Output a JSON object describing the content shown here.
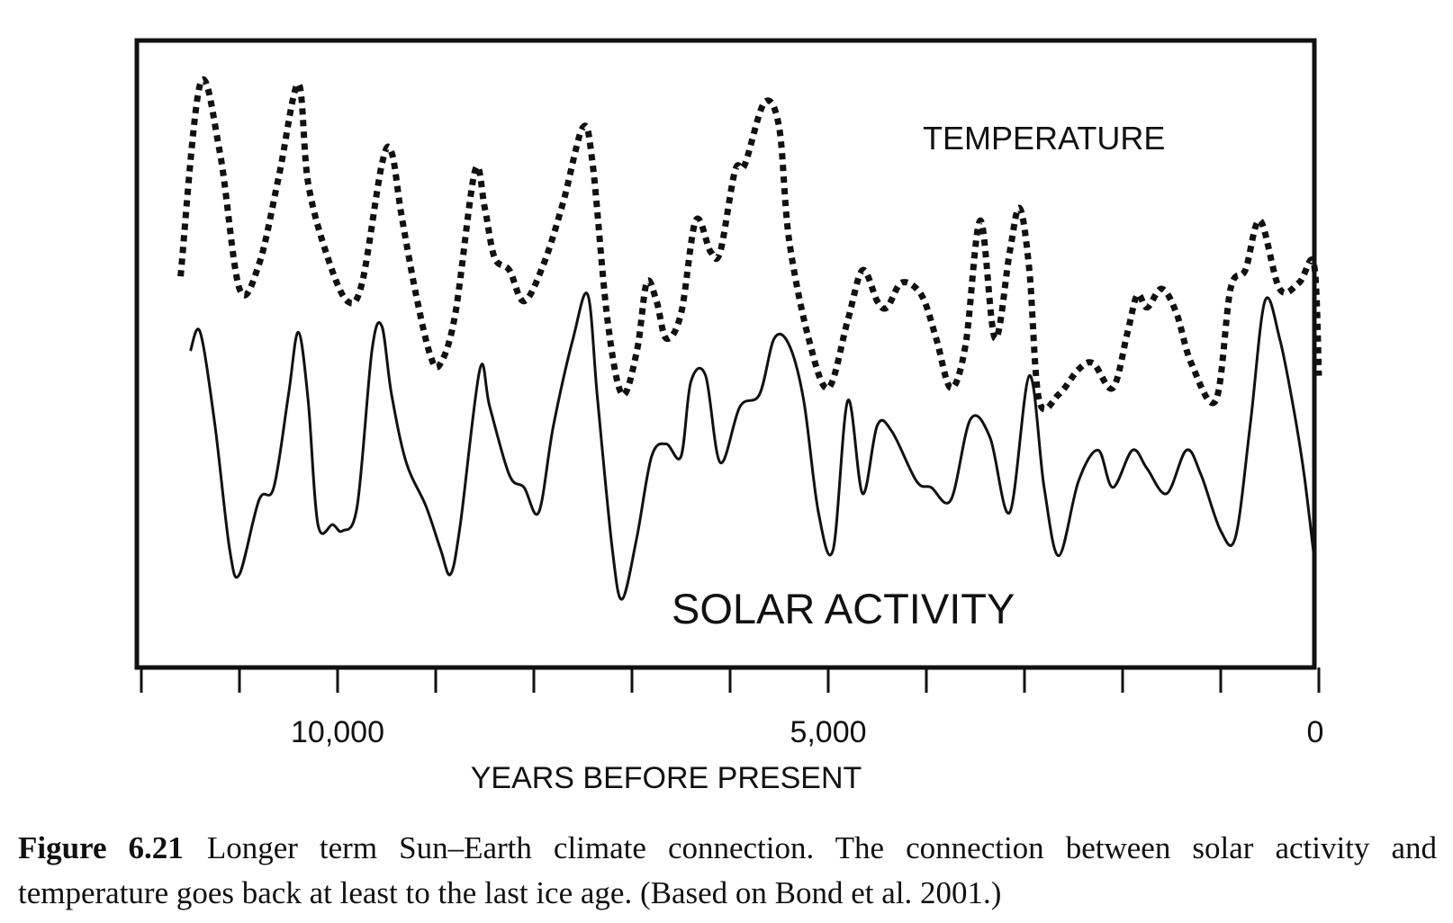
{
  "chart_data": {
    "type": "line",
    "xlabel": "YEARS BEFORE PRESENT",
    "ylabel": "",
    "xlim": [
      12000,
      0
    ],
    "x_ticks": [
      12000,
      11000,
      10000,
      9000,
      8000,
      7000,
      6000,
      5000,
      4000,
      3000,
      2000,
      1000,
      0
    ],
    "x_tick_labels": [
      {
        "value": 10000,
        "label": "10,000"
      },
      {
        "value": 5000,
        "label": "5,000"
      },
      {
        "value": 0,
        "label": "0"
      }
    ],
    "y_scale": "relative (unlabeled)",
    "ylim": [
      0,
      100
    ],
    "grid": false,
    "legend": "none (series labeled directly on plot)",
    "series": [
      {
        "name": "TEMPERATURE",
        "style": "dotted",
        "color": "#111111",
        "points": [
          [
            11600,
            62
          ],
          [
            11400,
            93
          ],
          [
            11200,
            82
          ],
          [
            11000,
            60
          ],
          [
            10800,
            64
          ],
          [
            10600,
            78
          ],
          [
            10400,
            93
          ],
          [
            10300,
            77
          ],
          [
            10100,
            65
          ],
          [
            9900,
            58
          ],
          [
            9750,
            61
          ],
          [
            9550,
            80
          ],
          [
            9450,
            82
          ],
          [
            9350,
            72
          ],
          [
            9200,
            59
          ],
          [
            9050,
            49
          ],
          [
            8950,
            48
          ],
          [
            8800,
            56
          ],
          [
            8600,
            79
          ],
          [
            8500,
            73
          ],
          [
            8400,
            65
          ],
          [
            8250,
            63
          ],
          [
            8100,
            58
          ],
          [
            7900,
            64
          ],
          [
            7700,
            74
          ],
          [
            7500,
            86
          ],
          [
            7400,
            80
          ],
          [
            7250,
            55
          ],
          [
            7100,
            43
          ],
          [
            6950,
            50
          ],
          [
            6850,
            61
          ],
          [
            6750,
            58
          ],
          [
            6650,
            52
          ],
          [
            6500,
            56
          ],
          [
            6350,
            71
          ],
          [
            6200,
            66
          ],
          [
            6100,
            66
          ],
          [
            5950,
            79
          ],
          [
            5850,
            80
          ],
          [
            5650,
            90
          ],
          [
            5500,
            86
          ],
          [
            5400,
            68
          ],
          [
            5200,
            52
          ],
          [
            5000,
            44
          ],
          [
            4800,
            55
          ],
          [
            4650,
            63
          ],
          [
            4500,
            58
          ],
          [
            4400,
            57
          ],
          [
            4250,
            61
          ],
          [
            4050,
            59
          ],
          [
            3900,
            52
          ],
          [
            3750,
            44
          ],
          [
            3600,
            51
          ],
          [
            3450,
            71
          ],
          [
            3300,
            52
          ],
          [
            3150,
            66
          ],
          [
            3050,
            73
          ],
          [
            2950,
            63
          ],
          [
            2850,
            42
          ],
          [
            2650,
            43
          ],
          [
            2450,
            47
          ],
          [
            2300,
            48
          ],
          [
            2100,
            44
          ],
          [
            1950,
            53
          ],
          [
            1850,
            59
          ],
          [
            1750,
            57
          ],
          [
            1600,
            60
          ],
          [
            1450,
            56
          ],
          [
            1300,
            48
          ],
          [
            1050,
            42
          ],
          [
            900,
            60
          ],
          [
            750,
            63
          ],
          [
            600,
            71
          ],
          [
            400,
            60
          ],
          [
            200,
            61
          ],
          [
            50,
            64
          ],
          [
            0,
            46
          ]
        ]
      },
      {
        "name": "SOLAR ACTIVITY",
        "style": "solid",
        "color": "#111111",
        "points": [
          [
            11500,
            50
          ],
          [
            11400,
            53
          ],
          [
            11250,
            38
          ],
          [
            11100,
            18
          ],
          [
            11000,
            14
          ],
          [
            10800,
            26
          ],
          [
            10650,
            28
          ],
          [
            10500,
            43
          ],
          [
            10400,
            53
          ],
          [
            10300,
            42
          ],
          [
            10200,
            22
          ],
          [
            10050,
            22
          ],
          [
            9950,
            21
          ],
          [
            9800,
            25
          ],
          [
            9650,
            50
          ],
          [
            9550,
            54
          ],
          [
            9450,
            43
          ],
          [
            9300,
            32
          ],
          [
            9100,
            25
          ],
          [
            8950,
            18
          ],
          [
            8850,
            14
          ],
          [
            8750,
            22
          ],
          [
            8550,
            47
          ],
          [
            8450,
            41
          ],
          [
            8250,
            30
          ],
          [
            8100,
            28
          ],
          [
            7950,
            24
          ],
          [
            7800,
            38
          ],
          [
            7600,
            52
          ],
          [
            7450,
            59
          ],
          [
            7350,
            42
          ],
          [
            7200,
            18
          ],
          [
            7100,
            10
          ],
          [
            6950,
            20
          ],
          [
            6800,
            33
          ],
          [
            6650,
            35
          ],
          [
            6500,
            33
          ],
          [
            6400,
            45
          ],
          [
            6250,
            46
          ],
          [
            6100,
            32
          ],
          [
            5900,
            41
          ],
          [
            5700,
            43
          ],
          [
            5550,
            52
          ],
          [
            5400,
            51
          ],
          [
            5250,
            42
          ],
          [
            5100,
            24
          ],
          [
            4950,
            18
          ],
          [
            4800,
            42
          ],
          [
            4650,
            27
          ],
          [
            4500,
            38
          ],
          [
            4350,
            37
          ],
          [
            4100,
            29
          ],
          [
            3950,
            28
          ],
          [
            3750,
            26
          ],
          [
            3550,
            39
          ],
          [
            3350,
            36
          ],
          [
            3150,
            24
          ],
          [
            2950,
            46
          ],
          [
            2800,
            28
          ],
          [
            2650,
            17
          ],
          [
            2450,
            29
          ],
          [
            2250,
            34
          ],
          [
            2100,
            28
          ],
          [
            1900,
            34
          ],
          [
            1750,
            31
          ],
          [
            1550,
            27
          ],
          [
            1350,
            34
          ],
          [
            1200,
            30
          ],
          [
            1000,
            21
          ],
          [
            850,
            20
          ],
          [
            700,
            38
          ],
          [
            550,
            58
          ],
          [
            400,
            52
          ],
          [
            250,
            40
          ],
          [
            150,
            30
          ],
          [
            50,
            17
          ]
        ]
      }
    ],
    "annotations": [
      {
        "text": "TEMPERATURE",
        "series": "TEMPERATURE"
      },
      {
        "text": "SOLAR ACTIVITY",
        "series": "SOLAR ACTIVITY"
      }
    ]
  },
  "caption": {
    "figure_number": "Figure 6.21",
    "text": "Longer term Sun–Earth climate connection. The connection between solar activity and temperature goes back at least to the last ice age. (Based on Bond et al. 2001.)"
  }
}
